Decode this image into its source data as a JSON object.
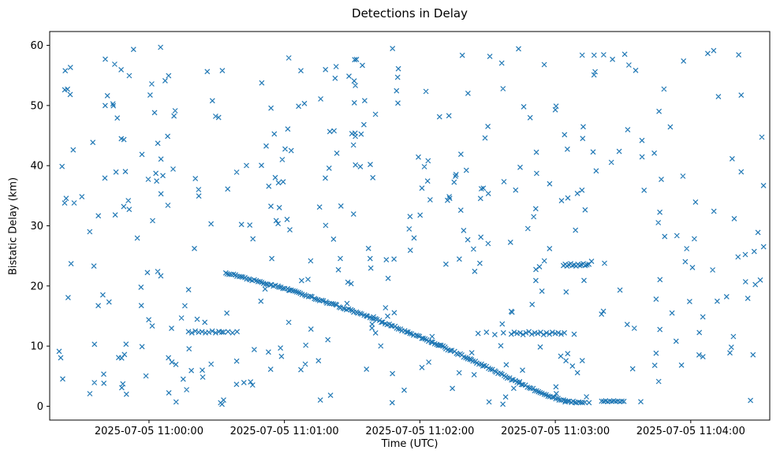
{
  "chart_data": {
    "type": "scatter",
    "title": "Detections in Delay",
    "xlabel": "Time (UTC)",
    "ylabel": "Bistatic Delay (km)",
    "marker": "x",
    "marker_color": "#1f77b4",
    "grid": false,
    "legend": "none",
    "x_tick_labels": [
      "2025-07-05 11:00:00",
      "2025-07-05 11:01:00",
      "2025-07-05 11:02:00",
      "2025-07-05 11:03:00",
      "2025-07-05 11:04:00"
    ],
    "x_tick_seconds": [
      0,
      60,
      120,
      180,
      240
    ],
    "x_range_seconds": [
      -44,
      275
    ],
    "y_ticks": [
      0,
      10,
      20,
      30,
      40,
      50,
      60
    ],
    "ylim": [
      -2.3,
      62.3
    ],
    "series": [
      {
        "name": "random-clutter",
        "kind": "uniform",
        "count": 430,
        "seed": 11,
        "t_range": [
          -40,
          273
        ],
        "km_range": [
          0.3,
          59.7
        ]
      },
      {
        "name": "target-track",
        "kind": "track",
        "step_seconds": 0.85,
        "t_jitter": 0.25,
        "km_jitter": 0.12,
        "seed": 13,
        "anchors": [
          [
            34,
            22.2
          ],
          [
            40,
            21.6
          ],
          [
            46,
            21.0
          ],
          [
            52,
            20.4
          ],
          [
            58,
            19.8
          ],
          [
            64,
            19.1
          ],
          [
            70,
            18.4
          ],
          [
            76,
            17.6
          ],
          [
            82,
            16.9
          ],
          [
            88,
            16.1
          ],
          [
            94,
            15.3
          ],
          [
            100,
            14.5
          ],
          [
            106,
            13.6
          ],
          [
            112,
            12.7
          ],
          [
            118,
            11.8
          ],
          [
            124,
            10.9
          ],
          [
            130,
            9.9
          ],
          [
            136,
            8.9
          ],
          [
            142,
            7.8
          ],
          [
            148,
            6.8
          ],
          [
            154,
            5.7
          ],
          [
            160,
            4.6
          ],
          [
            166,
            3.5
          ],
          [
            172,
            2.5
          ],
          [
            178,
            1.6
          ],
          [
            183,
            1.0
          ],
          [
            188,
            0.7
          ],
          [
            193,
            0.6
          ]
        ]
      },
      {
        "name": "cluster-23km",
        "kind": "points",
        "points": [
          [
            183.6,
            23.4
          ],
          [
            184.4,
            23.6
          ],
          [
            185.2,
            23.3
          ],
          [
            186.0,
            23.5
          ],
          [
            186.8,
            23.7
          ],
          [
            187.6,
            23.4
          ],
          [
            188.4,
            23.5
          ],
          [
            189.2,
            23.3
          ],
          [
            190.0,
            23.6
          ],
          [
            190.8,
            23.4
          ],
          [
            191.6,
            23.5
          ],
          [
            192.4,
            23.7
          ],
          [
            193.2,
            23.4
          ],
          [
            194.0,
            23.5
          ],
          [
            194.9,
            23.6
          ]
        ]
      },
      {
        "name": "cluster-12km-right",
        "kind": "points",
        "points": [
          [
            145.8,
            12.1
          ],
          [
            149.5,
            12.3
          ],
          [
            153.2,
            11.9
          ],
          [
            157.0,
            12.2
          ],
          [
            160.5,
            12.0
          ],
          [
            161.8,
            12.3
          ],
          [
            163.1,
            12.1
          ],
          [
            164.4,
            12.2
          ],
          [
            165.7,
            11.9
          ],
          [
            167.0,
            12.2
          ],
          [
            168.3,
            12.4
          ],
          [
            169.6,
            12.0
          ],
          [
            170.9,
            12.2
          ],
          [
            172.2,
            12.1
          ],
          [
            173.5,
            12.3
          ],
          [
            174.8,
            11.9
          ],
          [
            176.1,
            12.2
          ],
          [
            177.4,
            12.0
          ],
          [
            178.7,
            12.3
          ],
          [
            180.0,
            12.1
          ],
          [
            181.3,
            12.2
          ],
          [
            182.6,
            12.0
          ],
          [
            184.0,
            12.2
          ]
        ]
      },
      {
        "name": "cluster-12km-left",
        "kind": "points",
        "points": [
          [
            17.5,
            12.4
          ],
          [
            19.0,
            12.2
          ],
          [
            20.5,
            12.5
          ],
          [
            22.0,
            12.3
          ],
          [
            23.5,
            12.4
          ],
          [
            25.0,
            12.2
          ],
          [
            26.5,
            12.3
          ],
          [
            28.0,
            12.5
          ],
          [
            29.5,
            12.2
          ],
          [
            31.0,
            12.4
          ],
          [
            33.0,
            12.3
          ],
          [
            35.0,
            12.4
          ],
          [
            37.0,
            12.2
          ],
          [
            39.0,
            12.4
          ]
        ]
      },
      {
        "name": "cluster-1km",
        "kind": "points",
        "points": [
          [
            200.5,
            0.85
          ],
          [
            201.4,
            0.8
          ],
          [
            202.3,
            0.9
          ],
          [
            203.2,
            0.75
          ],
          [
            204.1,
            0.85
          ],
          [
            205.0,
            0.8
          ],
          [
            205.9,
            0.9
          ],
          [
            206.8,
            0.8
          ],
          [
            207.7,
            0.85
          ],
          [
            208.6,
            0.75
          ],
          [
            209.5,
            0.85
          ],
          [
            210.4,
            0.8
          ]
        ]
      }
    ]
  }
}
